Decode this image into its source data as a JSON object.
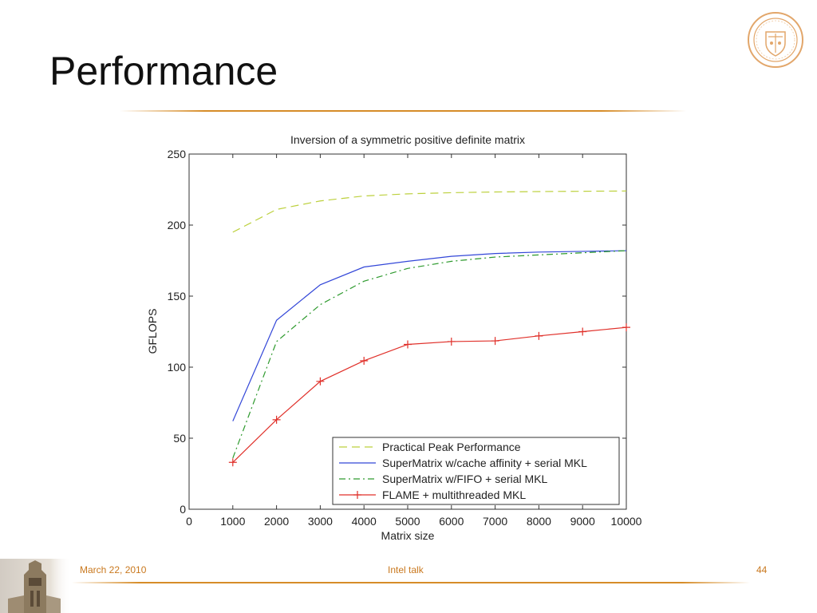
{
  "slide": {
    "title": "Performance",
    "footer_date": "March 22, 2010",
    "footer_event": "Intel talk",
    "page_number": "44"
  },
  "colors": {
    "accent": "#d68c28",
    "footer_text": "#c9781e"
  },
  "icons": {
    "seal": "university-seal-icon",
    "tower": "tower-image-icon"
  },
  "chart_data": {
    "type": "line",
    "title": "Inversion of a symmetric positive definite matrix",
    "xlabel": "Matrix size",
    "ylabel": "GFLOPS",
    "xlim": [
      0,
      10000
    ],
    "ylim": [
      0,
      250
    ],
    "xticks": [
      0,
      1000,
      2000,
      3000,
      4000,
      5000,
      6000,
      7000,
      8000,
      9000,
      10000
    ],
    "yticks": [
      0,
      50,
      100,
      150,
      200,
      250
    ],
    "grid": false,
    "legend_position": "bottom-right",
    "x": [
      1000,
      2000,
      3000,
      4000,
      5000,
      6000,
      7000,
      8000,
      9000,
      10000
    ],
    "series": [
      {
        "name": "Practical Peak Performance",
        "color": "#bcd03c",
        "dash": "dashed",
        "marker": "none",
        "values": [
          195,
          211,
          217,
          220.5,
          222,
          222.8,
          223.3,
          223.6,
          223.8,
          224
        ]
      },
      {
        "name": "SuperMatrix w/cache affinity + serial MKL",
        "color": "#3347d8",
        "dash": "solid",
        "marker": "none",
        "values": [
          62,
          133,
          158,
          170.5,
          174.5,
          178,
          180,
          181,
          181.5,
          182
        ]
      },
      {
        "name": "SuperMatrix w/FIFO + serial MKL",
        "color": "#2e9a2e",
        "dash": "dashdot",
        "marker": "none",
        "values": [
          36,
          118,
          144,
          160.5,
          169.5,
          174.5,
          177.5,
          179,
          180.5,
          182
        ]
      },
      {
        "name": "FLAME + multithreaded MKL",
        "color": "#e0302a",
        "dash": "solid",
        "marker": "plus",
        "values": [
          33,
          63,
          90,
          104.5,
          116,
          118,
          118.5,
          122,
          125,
          128
        ]
      }
    ]
  }
}
